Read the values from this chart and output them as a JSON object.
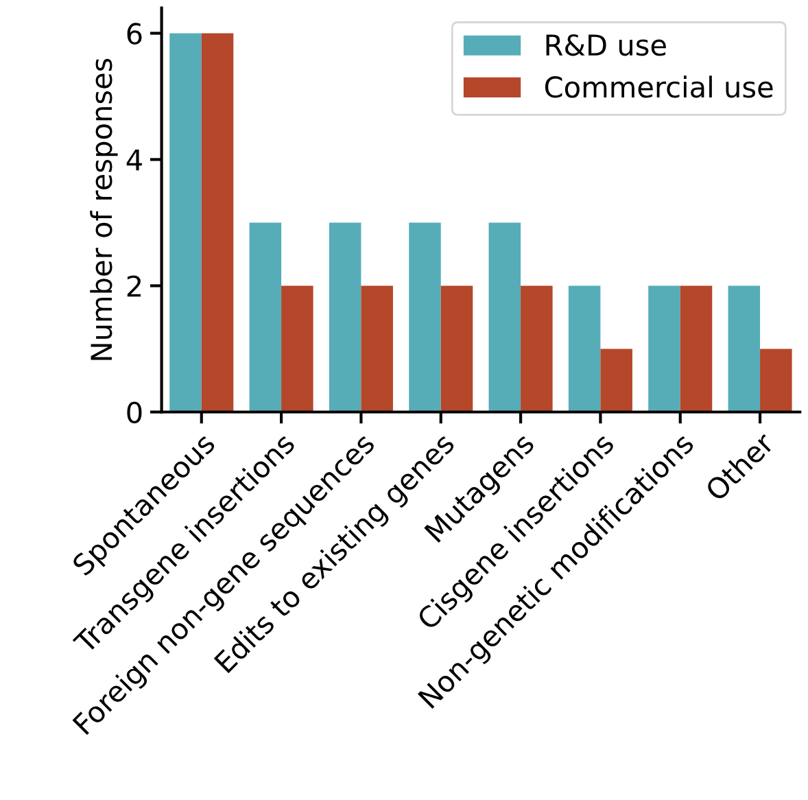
{
  "chart_data": {
    "type": "bar",
    "ylabel": "Number of responses",
    "categories": [
      "Spontaneous",
      "Transgene insertions",
      "Foreign non-gene sequences",
      "Edits to existing genes",
      "Mutagens",
      "Cisgene insertions",
      "Non-genetic modifications",
      "Other"
    ],
    "series": [
      {
        "name": "R&D use",
        "color": "#56adb8",
        "values": [
          6,
          3,
          3,
          3,
          3,
          2,
          2,
          2
        ]
      },
      {
        "name": "Commercial use",
        "color": "#b5472a",
        "values": [
          6,
          2,
          2,
          2,
          2,
          1,
          2,
          1
        ]
      }
    ],
    "ylim": [
      0,
      6.4
    ],
    "yticks": [
      0,
      2,
      4,
      6
    ],
    "grid": false,
    "legend": "top right"
  }
}
